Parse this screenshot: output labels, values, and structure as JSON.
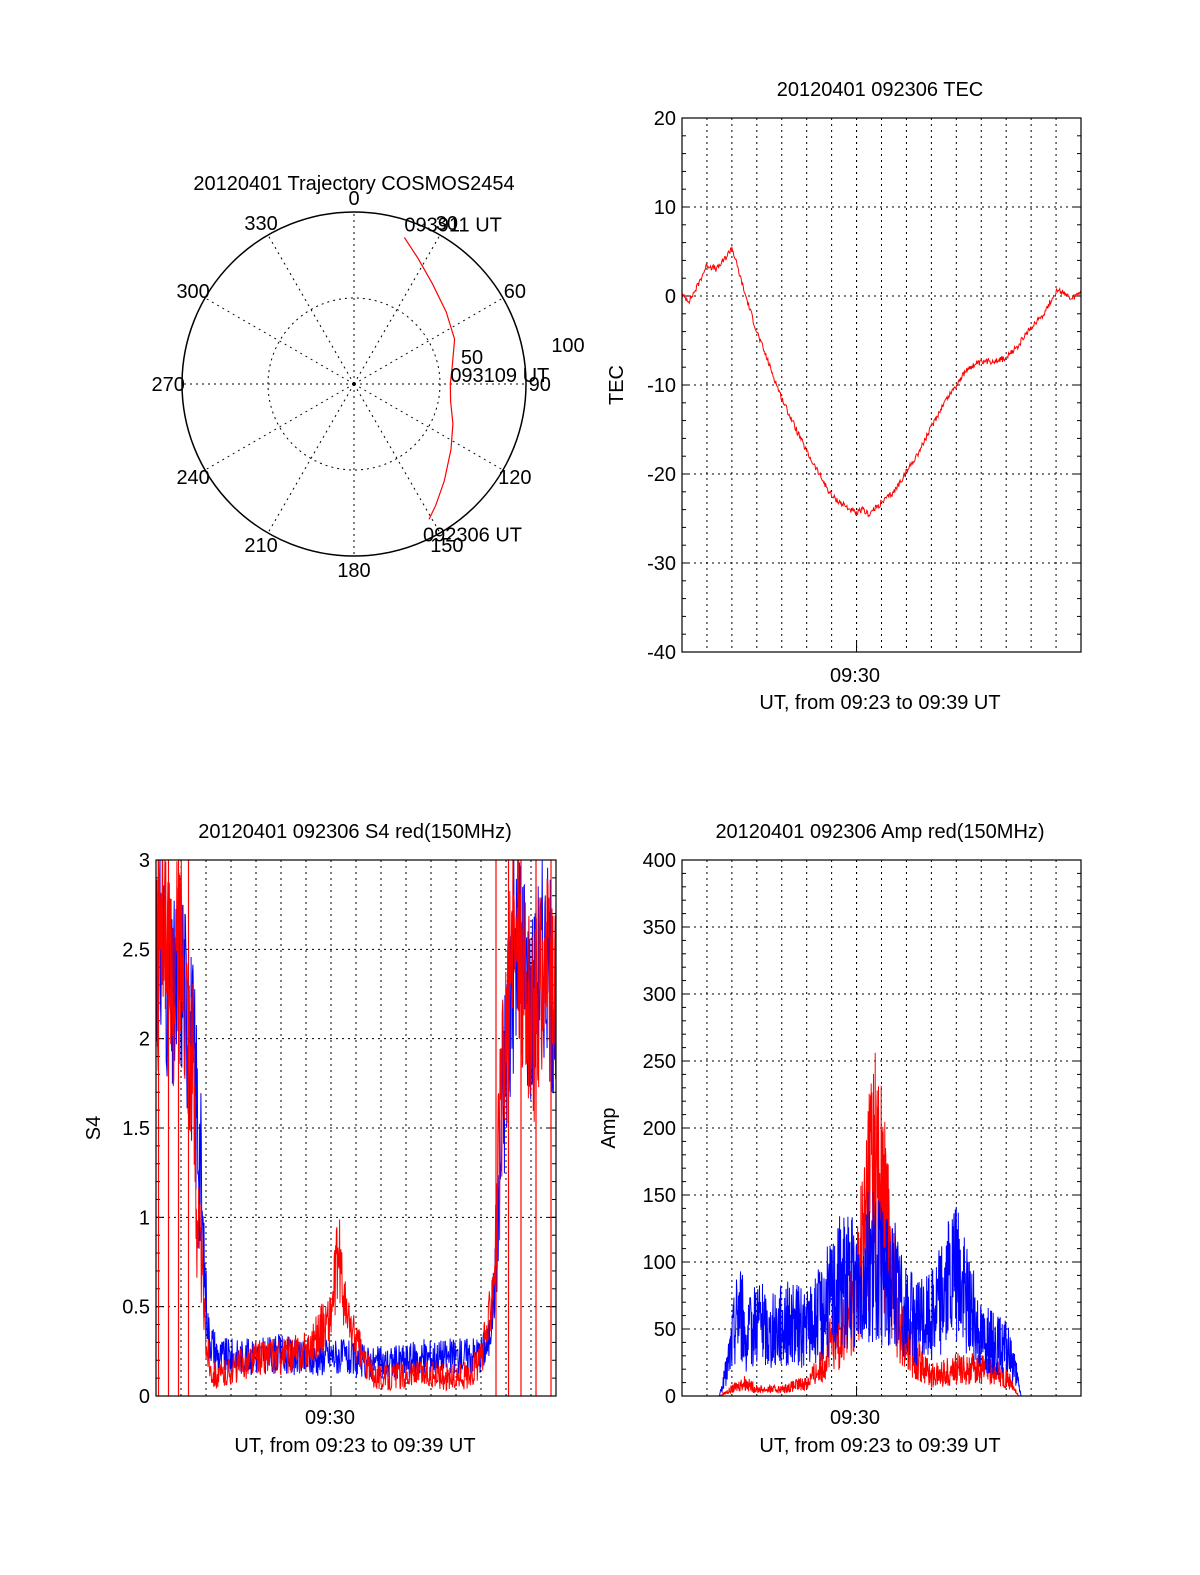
{
  "chart_data": [
    {
      "type": "polar",
      "title": "20120401 Trajectory COSMOS2454",
      "azimuth_labels": [
        "0",
        "30",
        "60",
        "90",
        "120",
        "150",
        "180",
        "210",
        "240",
        "270",
        "300",
        "330"
      ],
      "radius_labels": [
        "50",
        "100"
      ],
      "range": [
        0,
        100
      ],
      "grid": true,
      "series": [
        {
          "color": "#ff0000",
          "points": [
            {
              "az": 19,
              "r": 90
            },
            {
              "az": 27,
              "r": 82
            },
            {
              "az": 38,
              "r": 74
            },
            {
              "az": 52,
              "r": 68
            },
            {
              "az": 66,
              "r": 64
            },
            {
              "az": 80,
              "r": 58
            },
            {
              "az": 90,
              "r": 56
            },
            {
              "az": 100,
              "r": 57
            },
            {
              "az": 112,
              "r": 62
            },
            {
              "az": 124,
              "r": 68
            },
            {
              "az": 137,
              "r": 77
            },
            {
              "az": 146,
              "r": 85
            },
            {
              "az": 151,
              "r": 90
            }
          ]
        }
      ],
      "annotations": [
        {
          "text": "093911 UT",
          "at": "start"
        },
        {
          "text": "093109 UT",
          "at": "middle"
        },
        {
          "text": "092306 UT",
          "at": "end"
        }
      ]
    },
    {
      "type": "line",
      "title": "20120401 092306 TEC",
      "ylabel": "TEC",
      "xlabel": "UT, from 09:23 to 09:39 UT",
      "x_tick_label": "09:30",
      "x_unit": "minutes after 09:23",
      "xlim": [
        0,
        16
      ],
      "ylim": [
        -40,
        20
      ],
      "yticks": [
        "20",
        "10",
        "0",
        "-10",
        "-20",
        "-30",
        "-40"
      ],
      "grid": true,
      "series": [
        {
          "color": "#ff0000",
          "x": [
            0,
            0.3,
            0.6,
            1.0,
            1.4,
            1.8,
            2.0,
            2.5,
            3.0,
            4.0,
            5.0,
            6.0,
            7.0,
            7.2,
            7.5,
            7.9,
            8.5,
            9.5,
            10.5,
            11.0,
            11.5,
            12.0,
            13.0,
            13.5,
            14.0,
            14.5,
            15.0,
            15.3,
            15.6,
            16.0
          ],
          "y": [
            0,
            -0.5,
            1.0,
            3.5,
            3.0,
            4.5,
            5.5,
            0.5,
            -4.0,
            -11.5,
            -17.5,
            -22.5,
            -24.5,
            -24.0,
            -24.5,
            -23.5,
            -22.0,
            -17.5,
            -12.0,
            -10.0,
            -8.0,
            -7.5,
            -7.0,
            -5.5,
            -3.5,
            -2.0,
            0.5,
            0.5,
            -0.5,
            0.5
          ]
        }
      ]
    },
    {
      "type": "line",
      "title": "20120401 092306 S4 red(150MHz)",
      "ylabel": "S4",
      "xlabel": "UT, from 09:23 to 09:39 UT",
      "x_tick_label": "09:30",
      "x_unit": "minutes after 09:23",
      "xlim": [
        0,
        16
      ],
      "ylim": [
        0,
        3
      ],
      "yticks": [
        "3",
        "2.5",
        "2",
        "1.5",
        "1",
        "0.5",
        "0"
      ],
      "grid": true,
      "series": [
        {
          "color": "#0000ff",
          "x": [
            0,
            0.3,
            0.6,
            1.0,
            1.4,
            1.7,
            1.9,
            2.1,
            2.5,
            3.0,
            4.0,
            5.0,
            6.0,
            7.0,
            8.0,
            9.0,
            10.0,
            11.0,
            12.0,
            13.0,
            13.3,
            13.6,
            13.9,
            14.2,
            14.5,
            15.0,
            15.5,
            16.0
          ],
          "y": [
            2.3,
            2.6,
            2.1,
            2.4,
            2.0,
            1.5,
            0.8,
            0.35,
            0.22,
            0.22,
            0.22,
            0.24,
            0.2,
            0.23,
            0.2,
            0.18,
            0.2,
            0.22,
            0.22,
            0.24,
            0.3,
            0.7,
            1.7,
            2.3,
            2.6,
            2.2,
            2.5,
            2.2
          ]
        },
        {
          "color": "#ff0000",
          "x": [
            0,
            0.3,
            0.6,
            1.0,
            1.4,
            1.7,
            2.0,
            2.2,
            2.5,
            3.0,
            4.0,
            5.0,
            6.0,
            6.5,
            7.0,
            7.3,
            7.6,
            8.0,
            8.5,
            9.0,
            10.0,
            11.0,
            12.0,
            12.5,
            13.0,
            13.3,
            13.6,
            13.9,
            14.2,
            14.5,
            15.0,
            15.5,
            16.0
          ],
          "y": [
            2.4,
            2.8,
            2.2,
            2.6,
            2.0,
            1.0,
            0.3,
            0.15,
            0.1,
            0.15,
            0.22,
            0.22,
            0.25,
            0.35,
            0.45,
            0.8,
            0.45,
            0.3,
            0.15,
            0.1,
            0.12,
            0.12,
            0.1,
            0.12,
            0.2,
            0.4,
            0.9,
            1.8,
            2.4,
            2.6,
            2.0,
            2.4,
            2.2
          ]
        }
      ]
    },
    {
      "type": "line",
      "title": "20120401 092306 Amp red(150MHz)",
      "ylabel": "Amp",
      "xlabel": "UT, from 09:23 to 09:39 UT",
      "x_tick_label": "09:30",
      "x_unit": "minutes after 09:23",
      "xlim": [
        0,
        16
      ],
      "ylim": [
        0,
        400
      ],
      "yticks": [
        "400",
        "350",
        "300",
        "250",
        "200",
        "150",
        "100",
        "50",
        "0"
      ],
      "grid": true,
      "series": [
        {
          "color": "#ff0000",
          "x": [
            0,
            1.5,
            2.0,
            2.5,
            3.0,
            4.0,
            5.0,
            5.5,
            6.0,
            6.5,
            7.0,
            7.3,
            7.6,
            8.0,
            8.3,
            8.6,
            9.0,
            10.0,
            11.0,
            12.0,
            13.0,
            13.5,
            14.0,
            16.0
          ],
          "y": [
            0,
            0,
            5,
            10,
            5,
            5,
            10,
            20,
            40,
            50,
            80,
            120,
            180,
            150,
            110,
            70,
            40,
            15,
            20,
            20,
            15,
            0,
            0,
            0
          ]
        },
        {
          "color": "#0000ff",
          "x": [
            0,
            1.5,
            1.8,
            2.0,
            2.3,
            2.6,
            3.0,
            3.5,
            4.0,
            5.0,
            5.5,
            6.0,
            6.5,
            7.0,
            7.5,
            8.0,
            8.5,
            9.0,
            9.5,
            10.0,
            10.5,
            11.0,
            11.5,
            12.0,
            12.5,
            13.0,
            13.3,
            13.6,
            14.0,
            16.0
          ],
          "y": [
            0,
            0,
            20,
            40,
            70,
            40,
            60,
            45,
            55,
            50,
            60,
            75,
            90,
            80,
            100,
            90,
            85,
            60,
            55,
            60,
            80,
            90,
            70,
            45,
            40,
            35,
            25,
            0,
            0,
            0
          ]
        }
      ]
    }
  ]
}
